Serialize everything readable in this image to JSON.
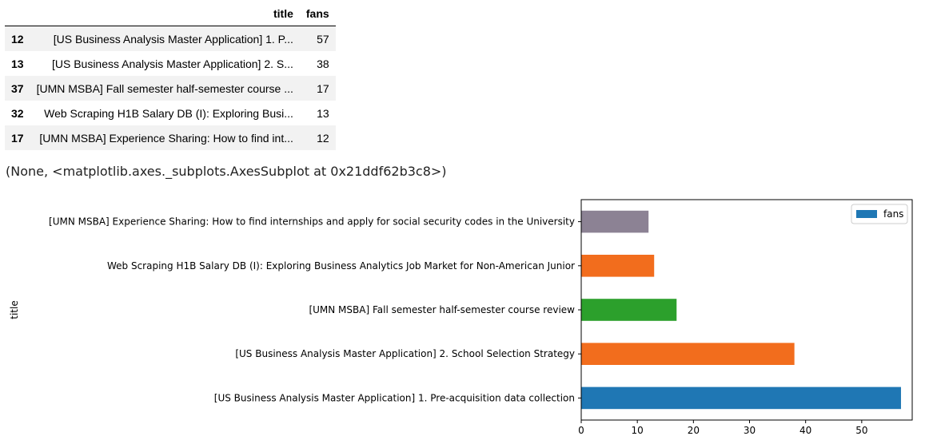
{
  "table": {
    "columns": [
      "",
      "title",
      "fans"
    ],
    "rows": [
      {
        "index": "12",
        "title": "[US Business Analysis Master Application] 1. P...",
        "fans": "57"
      },
      {
        "index": "13",
        "title": "[US Business Analysis Master Application] 2. S...",
        "fans": "38"
      },
      {
        "index": "37",
        "title": "[UMN MSBA] Fall semester half-semester course ...",
        "fans": "17"
      },
      {
        "index": "32",
        "title": "Web Scraping H1B Salary DB (I): Exploring Busi...",
        "fans": "13"
      },
      {
        "index": "17",
        "title": "[UMN MSBA] Experience Sharing: How to find int...",
        "fans": "12"
      }
    ]
  },
  "output_repr": "(None, <matplotlib.axes._subplots.AxesSubplot at 0x21ddf62b3c8>)",
  "chart_data": {
    "type": "bar",
    "orientation": "horizontal",
    "categories": [
      "[US Business Analysis Master Application] 1. Pre-acquisition data collection",
      "[US Business Analysis Master Application] 2. School Selection Strategy",
      "[UMN MSBA] Fall semester half-semester course review",
      "Web Scraping H1B Salary DB (I): Exploring Business Analytics Job Market for Non-American Junior",
      "[UMN MSBA] Experience Sharing: How to find internships and apply for social security codes in the University"
    ],
    "series": [
      {
        "name": "fans",
        "values": [
          57,
          38,
          17,
          13,
          12
        ]
      }
    ],
    "bar_colors": [
      "#1f77b4",
      "#f26d1d",
      "#2ca02c",
      "#f26d1d",
      "#8c8294"
    ],
    "legend_color": "#1f77b4",
    "xlabel": "",
    "ylabel": "title",
    "xlim": [
      0,
      59
    ],
    "xticks": [
      0,
      10,
      20,
      30,
      40,
      50
    ],
    "grid": false,
    "legend": "top-right"
  }
}
